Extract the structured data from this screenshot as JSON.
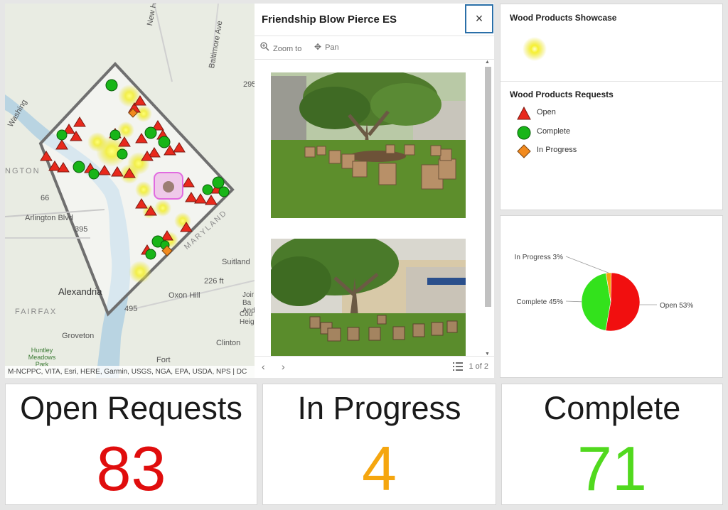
{
  "map": {
    "attribution": "M-NCPPC, VITA, Esri, HERE, Garmin, USGS, NGA, EPA, USDA, NPS | DC",
    "labels": {
      "hampshire": "New Hampshire Ave",
      "baltimore": "Baltimore Ave",
      "washington": "Washing",
      "ngton": "NGTON",
      "arlington": "Arlington Blvd",
      "alexandria": "Alexandria",
      "fairfax": "FAIRFAX",
      "oxonhill": "Oxon Hill",
      "groveton": "Groveton",
      "clinton": "Clinton",
      "suitland": "Suitland",
      "maryland": "MARYLAND",
      "huntley": "Huntley Meadows Park",
      "fort": "Fort",
      "elevation": "226 ft",
      "joint": "Joir Ba And",
      "county": "Cou Heig",
      "r66": "66",
      "r395": "395",
      "r295": "295",
      "r495": "495"
    }
  },
  "popup": {
    "title": "Friendship Blow Pierce ES",
    "close_label": "×",
    "zoom_label": "Zoom to",
    "pan_label": "Pan",
    "page_count": "1 of 2"
  },
  "legend": {
    "showcase_title": "Wood Products Showcase",
    "requests_title": "Wood Products Requests",
    "items": [
      {
        "label": "Open",
        "color": "#e8291c",
        "symbol": "triangle"
      },
      {
        "label": "Complete",
        "color": "#18b518",
        "symbol": "circle"
      },
      {
        "label": "In Progress",
        "color": "#f28a1e",
        "symbol": "diamond"
      }
    ]
  },
  "chart_data": {
    "type": "pie",
    "slices": [
      {
        "label": "Open 53%",
        "value": 53,
        "color": "#f10f0f"
      },
      {
        "label": "Complete 45%",
        "value": 45,
        "color": "#33e21c"
      },
      {
        "label": "In Progress 3%",
        "value": 3,
        "color": "#f5a30d"
      }
    ]
  },
  "indicators": {
    "open": {
      "title": "Open Requests",
      "value": "83",
      "color": "#e00d0d"
    },
    "in_progress": {
      "title": "In Progress",
      "value": "4",
      "color": "#f5a60f"
    },
    "complete": {
      "title": "Complete",
      "value": "71",
      "color": "#51d91e"
    }
  }
}
